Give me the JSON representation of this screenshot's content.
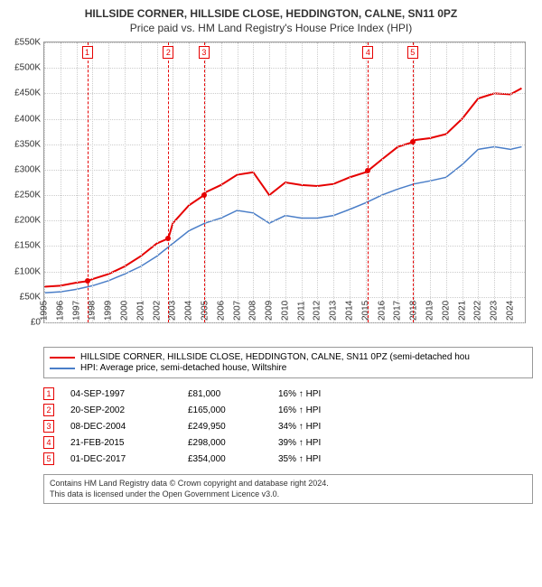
{
  "title_line1": "HILLSIDE CORNER, HILLSIDE CLOSE, HEDDINGTON, CALNE, SN11 0PZ",
  "title_line2": "Price paid vs. HM Land Registry's House Price Index (HPI)",
  "chart": {
    "type": "line",
    "xlim": [
      1995,
      2024.9
    ],
    "ylim": [
      0,
      550
    ],
    "ytick_step": 50,
    "y_prefix": "£",
    "y_suffix": "K",
    "xticks": [
      1995,
      1996,
      1997,
      1998,
      1999,
      2000,
      2001,
      2002,
      2003,
      2004,
      2005,
      2006,
      2007,
      2008,
      2009,
      2010,
      2011,
      2012,
      2013,
      2014,
      2015,
      2016,
      2017,
      2018,
      2019,
      2020,
      2021,
      2022,
      2023,
      2024
    ],
    "grid_color": "#cccccc",
    "background": "#ffffff",
    "border_color": "#999999",
    "series": [
      {
        "name": "HILLSIDE CORNER, HILLSIDE CLOSE, HEDDINGTON, CALNE, SN11 0PZ (semi-detached hou",
        "color": "#e60000",
        "width": 2,
        "points": [
          [
            1995,
            70
          ],
          [
            1996,
            72
          ],
          [
            1997,
            78
          ],
          [
            1997.67,
            81
          ],
          [
            1998,
            85
          ],
          [
            1999,
            95
          ],
          [
            2000,
            110
          ],
          [
            2001,
            130
          ],
          [
            2002,
            155
          ],
          [
            2002.72,
            165
          ],
          [
            2003,
            195
          ],
          [
            2004,
            230
          ],
          [
            2004.94,
            250
          ],
          [
            2005,
            255
          ],
          [
            2006,
            270
          ],
          [
            2007,
            290
          ],
          [
            2008,
            295
          ],
          [
            2009,
            250
          ],
          [
            2010,
            275
          ],
          [
            2011,
            270
          ],
          [
            2012,
            268
          ],
          [
            2013,
            272
          ],
          [
            2014,
            285
          ],
          [
            2015,
            295
          ],
          [
            2015.14,
            298
          ],
          [
            2016,
            320
          ],
          [
            2017,
            345
          ],
          [
            2017.92,
            354
          ],
          [
            2018,
            358
          ],
          [
            2019,
            362
          ],
          [
            2020,
            370
          ],
          [
            2021,
            400
          ],
          [
            2022,
            440
          ],
          [
            2023,
            450
          ],
          [
            2024,
            448
          ],
          [
            2024.7,
            460
          ]
        ]
      },
      {
        "name": "HPI: Average price, semi-detached house, Wiltshire",
        "color": "#4a7ec8",
        "width": 1.5,
        "points": [
          [
            1995,
            58
          ],
          [
            1996,
            60
          ],
          [
            1997,
            65
          ],
          [
            1998,
            72
          ],
          [
            1999,
            82
          ],
          [
            2000,
            95
          ],
          [
            2001,
            110
          ],
          [
            2002,
            130
          ],
          [
            2003,
            155
          ],
          [
            2004,
            180
          ],
          [
            2005,
            195
          ],
          [
            2006,
            205
          ],
          [
            2007,
            220
          ],
          [
            2008,
            215
          ],
          [
            2009,
            195
          ],
          [
            2010,
            210
          ],
          [
            2011,
            205
          ],
          [
            2012,
            205
          ],
          [
            2013,
            210
          ],
          [
            2014,
            222
          ],
          [
            2015,
            235
          ],
          [
            2016,
            250
          ],
          [
            2017,
            262
          ],
          [
            2018,
            272
          ],
          [
            2019,
            278
          ],
          [
            2020,
            285
          ],
          [
            2021,
            310
          ],
          [
            2022,
            340
          ],
          [
            2023,
            345
          ],
          [
            2024,
            340
          ],
          [
            2024.7,
            345
          ]
        ]
      }
    ],
    "markers": [
      {
        "n": "1",
        "x": 1997.67,
        "y": 81,
        "color": "#e60000"
      },
      {
        "n": "2",
        "x": 2002.72,
        "y": 165,
        "color": "#e60000"
      },
      {
        "n": "3",
        "x": 2004.94,
        "y": 250,
        "color": "#e60000"
      },
      {
        "n": "4",
        "x": 2015.14,
        "y": 298,
        "color": "#e60000"
      },
      {
        "n": "5",
        "x": 2017.92,
        "y": 354,
        "color": "#e60000"
      }
    ]
  },
  "legend": {
    "items": [
      {
        "color": "#e60000",
        "label": "HILLSIDE CORNER, HILLSIDE CLOSE, HEDDINGTON, CALNE, SN11 0PZ (semi-detached hou"
      },
      {
        "color": "#4a7ec8",
        "label": "HPI: Average price, semi-detached house, Wiltshire"
      }
    ]
  },
  "table": {
    "rows": [
      {
        "n": "1",
        "date": "04-SEP-1997",
        "price": "£81,000",
        "pct": "16% ↑ HPI",
        "color": "#e60000"
      },
      {
        "n": "2",
        "date": "20-SEP-2002",
        "price": "£165,000",
        "pct": "16% ↑ HPI",
        "color": "#e60000"
      },
      {
        "n": "3",
        "date": "08-DEC-2004",
        "price": "£249,950",
        "pct": "34% ↑ HPI",
        "color": "#e60000"
      },
      {
        "n": "4",
        "date": "21-FEB-2015",
        "price": "£298,000",
        "pct": "39% ↑ HPI",
        "color": "#e60000"
      },
      {
        "n": "5",
        "date": "01-DEC-2017",
        "price": "£354,000",
        "pct": "35% ↑ HPI",
        "color": "#e60000"
      }
    ]
  },
  "footer_line1": "Contains HM Land Registry data © Crown copyright and database right 2024.",
  "footer_line2": "This data is licensed under the Open Government Licence v3.0."
}
